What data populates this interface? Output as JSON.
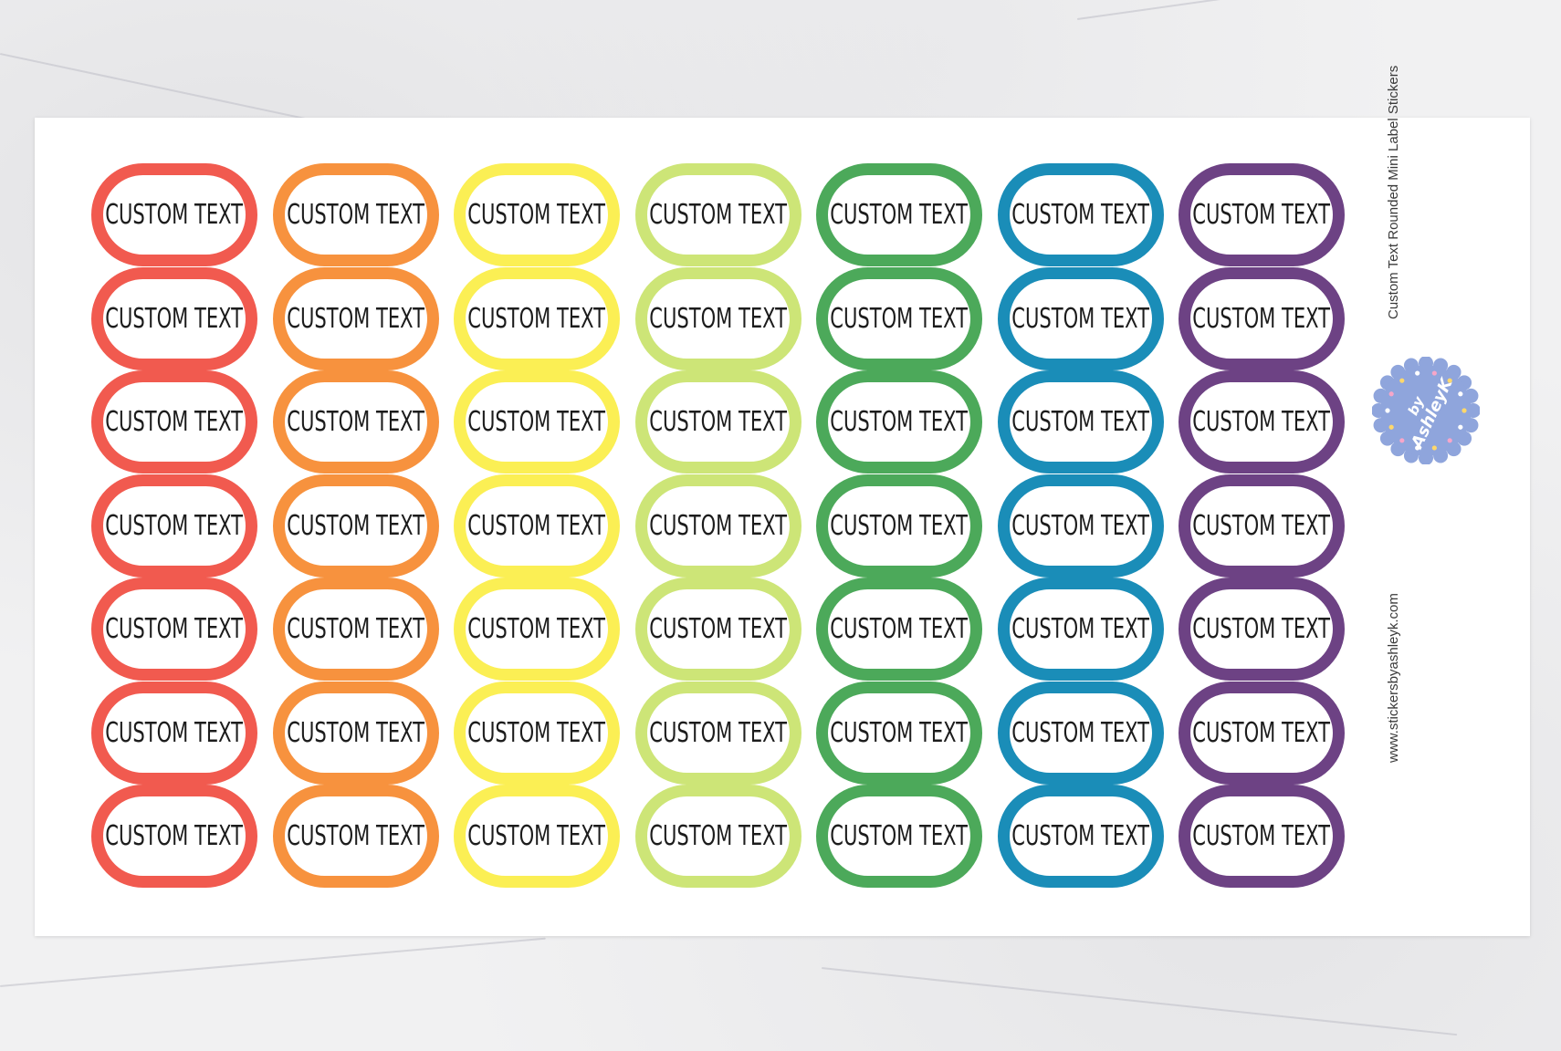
{
  "sheet": {
    "title": "Custom Text Rounded Mini Label Stickers",
    "website": "www.stickersbyashleyk.com",
    "logo": {
      "text": "by AshleyK",
      "color": "#8fa5dc"
    }
  },
  "sticker_text": "CUSTOM TEXT",
  "colors": [
    "#f15a4f",
    "#f7923e",
    "#fbef54",
    "#cde577",
    "#4ca95a",
    "#1a8db8",
    "#6d4284"
  ],
  "rows": 7
}
